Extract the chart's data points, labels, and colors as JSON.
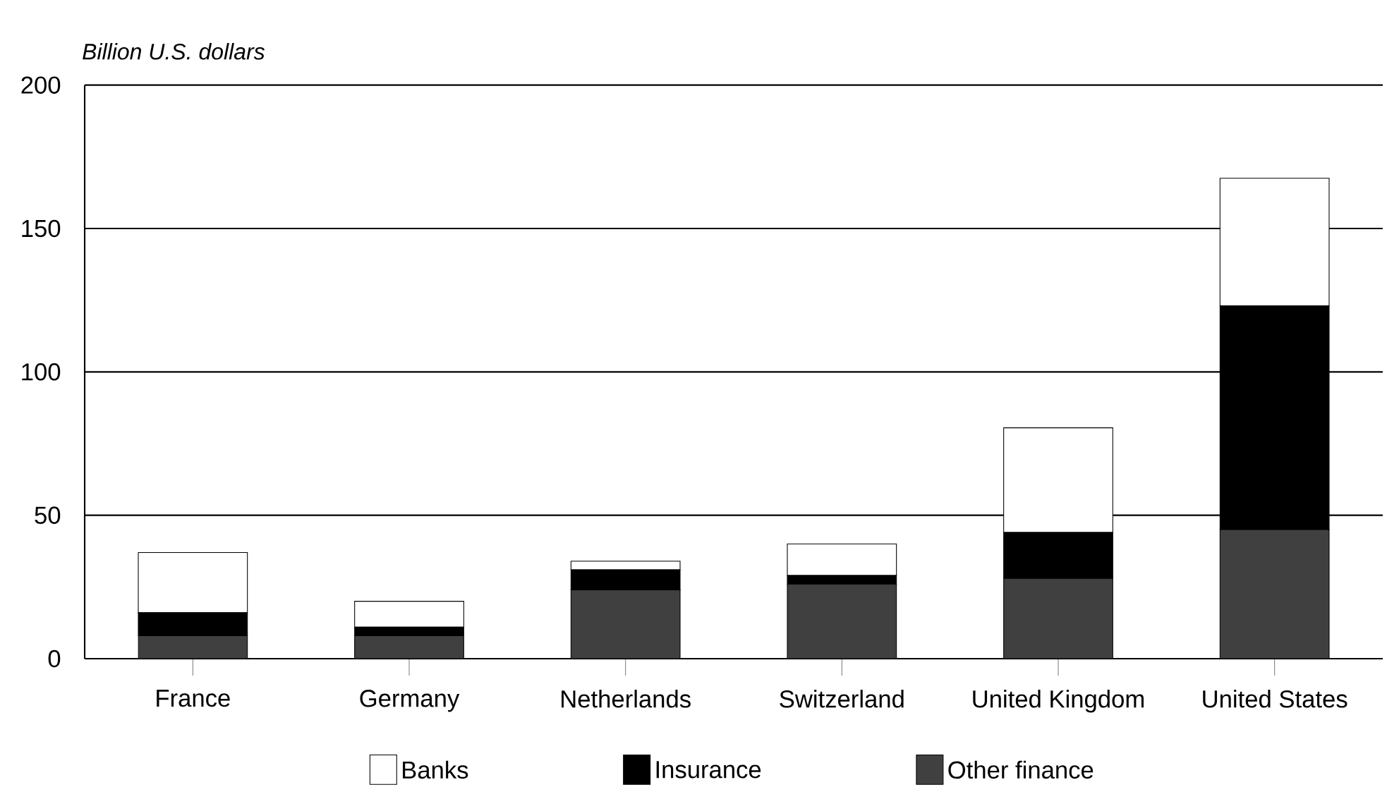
{
  "chart_data": {
    "type": "bar",
    "stacked": true,
    "ylabel": "Billion U.S. dollars",
    "categories": [
      "France",
      "Germany",
      "Netherlands",
      "Switzerland",
      "United Kingdom",
      "United States"
    ],
    "series": [
      {
        "name": "Other finance",
        "color": "#404040",
        "values": [
          8,
          8,
          24,
          26,
          28,
          45
        ]
      },
      {
        "name": "Insurance",
        "color": "#000000",
        "values": [
          8,
          3,
          7,
          3,
          16,
          78
        ]
      },
      {
        "name": "Banks",
        "color": "#ffffff",
        "values": [
          21,
          9,
          3,
          11,
          36.5,
          44.5
        ]
      }
    ],
    "ylim": [
      0,
      200
    ],
    "yticks": [
      0,
      50,
      100,
      150,
      200
    ],
    "grid": "y",
    "legend": "bottom"
  }
}
